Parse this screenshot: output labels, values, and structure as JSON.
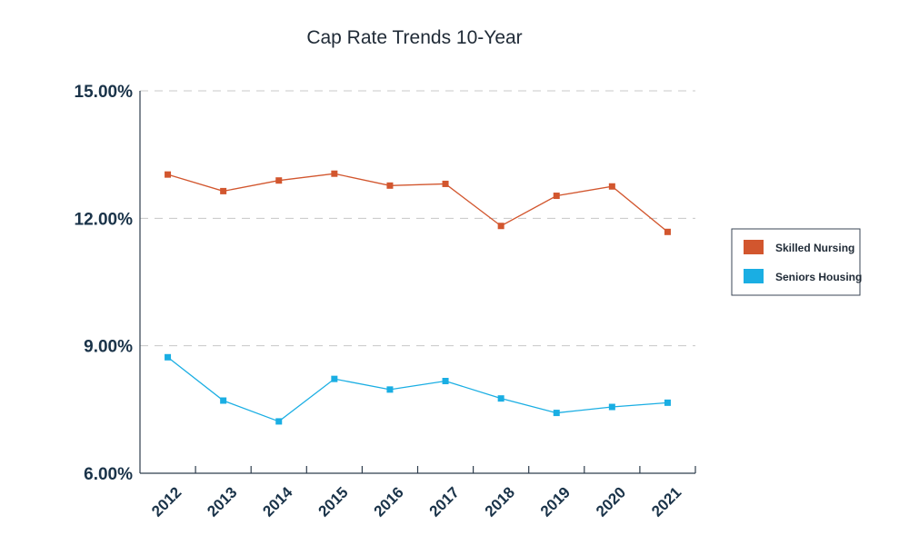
{
  "chart_data": {
    "type": "line",
    "title": "Cap Rate Trends 10-Year",
    "xlabel": "",
    "ylabel": "",
    "categories": [
      "2012",
      "2013",
      "2014",
      "2015",
      "2016",
      "2017",
      "2018",
      "2019",
      "2020",
      "2021"
    ],
    "ylim": [
      6,
      15
    ],
    "yticks": [
      6,
      9,
      12,
      15
    ],
    "ytick_labels": [
      "6.00%",
      "9.00%",
      "12.00%",
      "15.00%"
    ],
    "grid": "horizontal-dashed",
    "legend_position": "right",
    "series": [
      {
        "name": "Skilled Nursing",
        "color": "#d2562e",
        "values": [
          13.03,
          12.64,
          12.89,
          13.05,
          12.77,
          12.81,
          11.82,
          12.53,
          12.75,
          11.68
        ]
      },
      {
        "name": "Seniors Housing",
        "color": "#1aaee3",
        "values": [
          8.73,
          7.71,
          7.22,
          8.22,
          7.97,
          8.17,
          7.76,
          7.42,
          7.56,
          7.66
        ]
      }
    ]
  }
}
